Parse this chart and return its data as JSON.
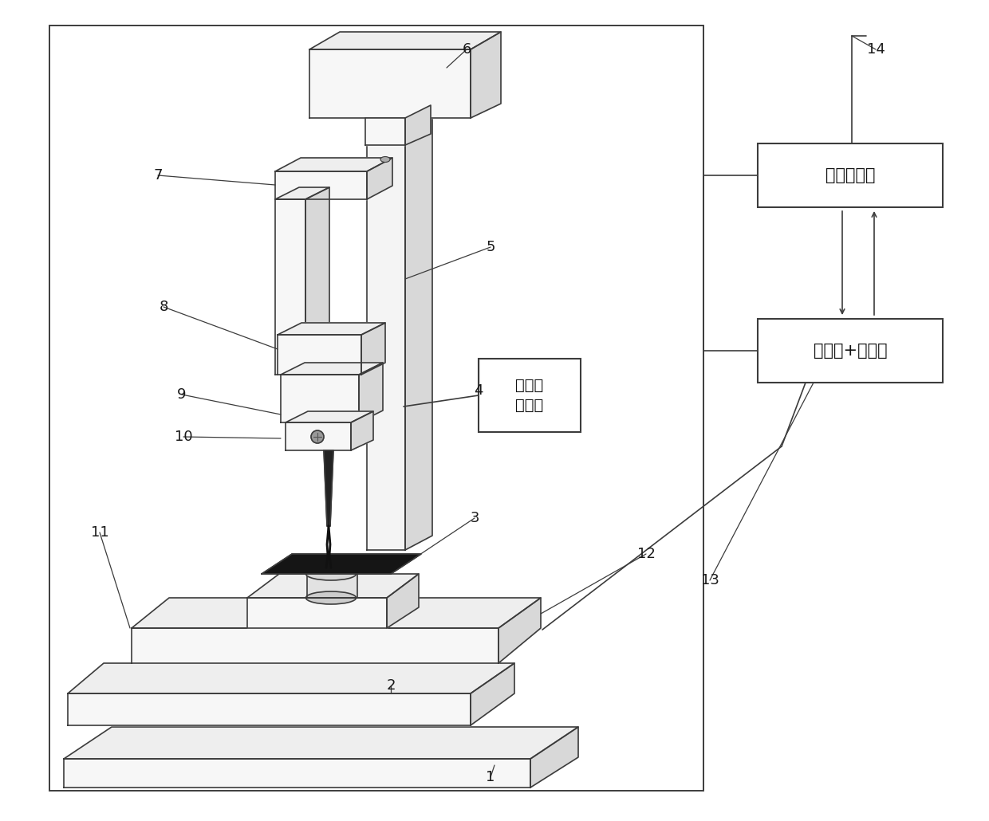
{
  "bg": "#ffffff",
  "lc": "#3c3c3c",
  "lw": 1.2,
  "label1": "上位机软件",
  "label2": "驱动器+控制器",
  "label3a": "高压直",
  "label3b": "流电源",
  "nums": [
    [
      "1",
      615,
      975
    ],
    [
      "2",
      490,
      860
    ],
    [
      "3",
      595,
      650
    ],
    [
      "4",
      600,
      490
    ],
    [
      "5",
      615,
      310
    ],
    [
      "6",
      585,
      62
    ],
    [
      "7",
      198,
      220
    ],
    [
      "8",
      205,
      385
    ],
    [
      "9",
      228,
      495
    ],
    [
      "10",
      230,
      548
    ],
    [
      "11",
      125,
      668
    ],
    [
      "12",
      810,
      695
    ],
    [
      "13",
      890,
      728
    ],
    [
      "14",
      1098,
      62
    ]
  ]
}
